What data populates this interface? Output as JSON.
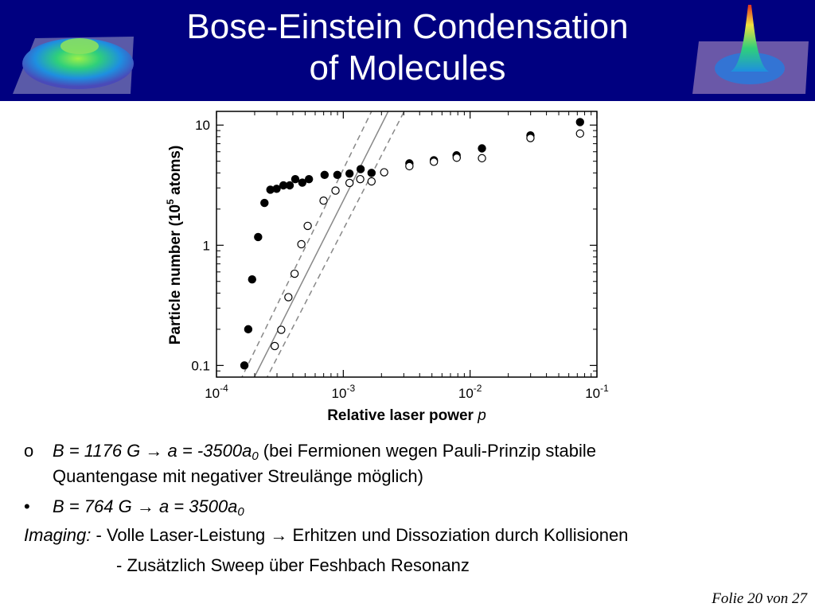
{
  "slide": {
    "title_line1": "Bose-Einstein Condensation",
    "title_line2": "of Molecules",
    "footer": "Folie 20 von 27",
    "header_color": "#000080",
    "thumbnails": [
      "thermal-cloud-density-profile",
      "condensate-density-peak"
    ]
  },
  "notes": {
    "b1": {
      "marker": "o",
      "field": "B = 1176 G",
      "arrow": "→",
      "scat": "a = -3500a",
      "sub": "0",
      "rest": " (bei Fermionen wegen Pauli-Prinzip stabile",
      "cont": "Quantengase mit negativer Streulänge möglich)"
    },
    "b2": {
      "marker": "•",
      "field": "B = 764 G",
      "arrow": "→",
      "scat": "a = 3500a",
      "sub": "0"
    },
    "imaging": {
      "label": "Imaging:",
      "line1": " - Volle Laser-Leistung → Erhitzen und Dissoziation durch Kollisionen",
      "line2": "- Zusätzlich Sweep über Feshbach Resonanz"
    }
  },
  "chart_data": {
    "type": "scatter",
    "x_scale": "log",
    "y_scale": "log",
    "xlim": [
      0.0001,
      0.1
    ],
    "ylim": [
      0.08,
      13
    ],
    "xlabel": "Relative laser power",
    "xlabel_var": "p",
    "ylabel_pre": "Particle number (10",
    "ylabel_sup": "5",
    "ylabel_post": " atoms)",
    "xticks": [
      {
        "value": 0.0001,
        "base": "10",
        "exp": "-4"
      },
      {
        "value": 0.001,
        "base": "10",
        "exp": "-3"
      },
      {
        "value": 0.01,
        "base": "10",
        "exp": "-2"
      },
      {
        "value": 0.1,
        "base": "10",
        "exp": "-1"
      }
    ],
    "yticks": [
      {
        "value": 0.1,
        "label": "0.1"
      },
      {
        "value": 1,
        "label": "1"
      },
      {
        "value": 10,
        "label": "10"
      }
    ],
    "grid": false,
    "series": [
      {
        "marker": "filled-circle",
        "x": [
          0.000166,
          0.000178,
          0.000191,
          0.000213,
          0.000239,
          0.000266,
          0.000298,
          0.000337,
          0.000378,
          0.000418,
          0.000475,
          0.000536,
          0.000712,
          0.000898,
          0.00112,
          0.00137,
          0.00167,
          0.00332,
          0.00518,
          0.00782,
          0.0124,
          0.0299,
          0.0736
        ],
        "y": [
          0.1,
          0.2,
          0.52,
          1.17,
          2.25,
          2.9,
          2.95,
          3.15,
          3.15,
          3.55,
          3.32,
          3.55,
          3.85,
          3.85,
          3.95,
          4.3,
          4.0,
          4.8,
          5.1,
          5.6,
          6.4,
          8.2,
          10.6
        ]
      },
      {
        "marker": "open-circle",
        "x": [
          0.000288,
          0.000324,
          0.000369,
          0.000413,
          0.000467,
          0.000524,
          0.000699,
          0.000868,
          0.00112,
          0.00136,
          0.00167,
          0.0021,
          0.00332,
          0.00518,
          0.00784,
          0.0124,
          0.0299,
          0.0736
        ],
        "y": [
          0.145,
          0.198,
          0.37,
          0.58,
          1.02,
          1.45,
          2.35,
          2.85,
          3.3,
          3.55,
          3.4,
          4.05,
          4.55,
          4.95,
          5.35,
          5.3,
          7.8,
          8.5
        ]
      }
    ],
    "reference_lines": [
      {
        "style": "solid",
        "x": [
          0.000193,
          0.00226
        ],
        "y": [
          0.075,
          13
        ]
      },
      {
        "style": "dashed",
        "x": [
          0.000154,
          0.00167
        ],
        "y": [
          0.075,
          13
        ]
      },
      {
        "style": "dashed",
        "x": [
          0.000243,
          0.00302
        ],
        "y": [
          0.075,
          13
        ]
      }
    ]
  }
}
